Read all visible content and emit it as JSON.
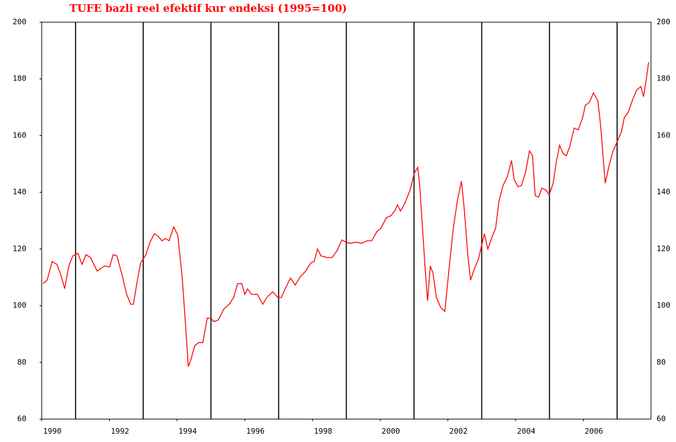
{
  "chart_data": {
    "type": "line",
    "title": "TUFE bazli reel efektif kur endeksi (1995=100)",
    "xlim": [
      1990,
      2008
    ],
    "ylim": [
      60,
      200
    ],
    "xticks": [
      1990,
      1992,
      1994,
      1996,
      1998,
      2000,
      2002,
      2004,
      2006
    ],
    "yticks": [
      60,
      80,
      100,
      120,
      140,
      160,
      180,
      200
    ],
    "vlines": [
      1991,
      1993,
      1995,
      1997,
      1999,
      2001,
      2003,
      2005,
      2007
    ],
    "series": [
      {
        "color": "#ff0000",
        "x": [
          1990.04,
          1990.16,
          1990.31,
          1990.45,
          1990.57,
          1990.68,
          1990.8,
          1990.92,
          1991.07,
          1991.19,
          1991.31,
          1991.44,
          1991.64,
          1991.85,
          1992.01,
          1992.11,
          1992.22,
          1992.36,
          1992.51,
          1992.63,
          1992.71,
          1992.81,
          1992.92,
          1993.08,
          1993.2,
          1993.33,
          1993.45,
          1993.55,
          1993.66,
          1993.76,
          1993.9,
          1994.02,
          1994.15,
          1994.25,
          1994.33,
          1994.41,
          1994.52,
          1994.64,
          1994.76,
          1994.89,
          1994.99,
          1995.09,
          1995.22,
          1995.38,
          1995.54,
          1995.67,
          1995.79,
          1995.91,
          1996.0,
          1996.08,
          1996.2,
          1996.37,
          1996.53,
          1996.65,
          1996.82,
          1996.98,
          1997.08,
          1997.19,
          1997.35,
          1997.49,
          1997.64,
          1997.8,
          1997.95,
          1998.05,
          1998.15,
          1998.25,
          1998.42,
          1998.58,
          1998.73,
          1998.87,
          1998.99,
          1999.12,
          1999.28,
          1999.45,
          1999.61,
          1999.75,
          1999.9,
          2000.02,
          2000.18,
          2000.31,
          2000.43,
          2000.51,
          2000.6,
          2000.72,
          2000.88,
          2001.01,
          2001.11,
          2001.17,
          2001.25,
          2001.33,
          2001.4,
          2001.48,
          2001.56,
          2001.66,
          2001.79,
          2001.91,
          2002.01,
          2002.16,
          2002.28,
          2002.4,
          2002.48,
          2002.59,
          2002.67,
          2002.77,
          2002.9,
          2003.02,
          2003.08,
          2003.18,
          2003.31,
          2003.41,
          2003.51,
          2003.63,
          2003.76,
          2003.88,
          2003.96,
          2004.07,
          2004.17,
          2004.29,
          2004.41,
          2004.5,
          2004.58,
          2004.68,
          2004.78,
          2004.91,
          2004.99,
          2005.11,
          2005.2,
          2005.3,
          2005.4,
          2005.5,
          2005.61,
          2005.73,
          2005.85,
          2005.98,
          2006.06,
          2006.18,
          2006.3,
          2006.43,
          2006.51,
          2006.59,
          2006.65,
          2006.76,
          2006.88,
          2007.0,
          2007.13,
          2007.21,
          2007.33,
          2007.45,
          2007.58,
          2007.7,
          2007.78,
          2007.86,
          2007.93
        ],
        "values": [
          107.8,
          109,
          115.6,
          114.6,
          110.7,
          106,
          114,
          117.6,
          118.5,
          114.6,
          118,
          117,
          112.2,
          114,
          113.7,
          118,
          117.6,
          111.5,
          104,
          100.5,
          100.5,
          107.8,
          115,
          118,
          122.4,
          125.4,
          124.4,
          122.9,
          123.7,
          122.9,
          127.8,
          124.9,
          110.2,
          93.2,
          78.5,
          81,
          85.9,
          87,
          87,
          95.6,
          95.6,
          94.4,
          95,
          98.8,
          100.5,
          102.9,
          107.8,
          107.8,
          104,
          105.9,
          104,
          104,
          100.5,
          102.9,
          104.9,
          102.9,
          102.9,
          105.9,
          109.8,
          107.3,
          110.2,
          112.2,
          115.1,
          115.6,
          120,
          117.6,
          117,
          117,
          119.5,
          123.2,
          122.4,
          122,
          122.4,
          122,
          122.9,
          122.9,
          126.1,
          127.3,
          131,
          131.7,
          133.4,
          135.6,
          133.4,
          135.9,
          140.7,
          146.8,
          148.8,
          142,
          127.3,
          112.7,
          101.7,
          114,
          111.5,
          102.9,
          99.3,
          98,
          110.2,
          127.3,
          137,
          143.9,
          134.6,
          117.6,
          109,
          112.7,
          116.3,
          122.4,
          125.4,
          120,
          124.4,
          127.3,
          137,
          142.4,
          145.6,
          151.2,
          144.4,
          142,
          142.4,
          146.8,
          154.6,
          152.9,
          138.8,
          138.3,
          141.5,
          140.7,
          139,
          143.2,
          150.5,
          156.6,
          153.7,
          152.9,
          156.6,
          162.7,
          162,
          166.3,
          170.7,
          171.7,
          175.1,
          172.2,
          163.9,
          151.7,
          143.2,
          149.3,
          154.6,
          157.8,
          161.5,
          166.3,
          168.3,
          172.4,
          176.1,
          177.3,
          173.7,
          179.8,
          185.9
        ]
      }
    ]
  }
}
